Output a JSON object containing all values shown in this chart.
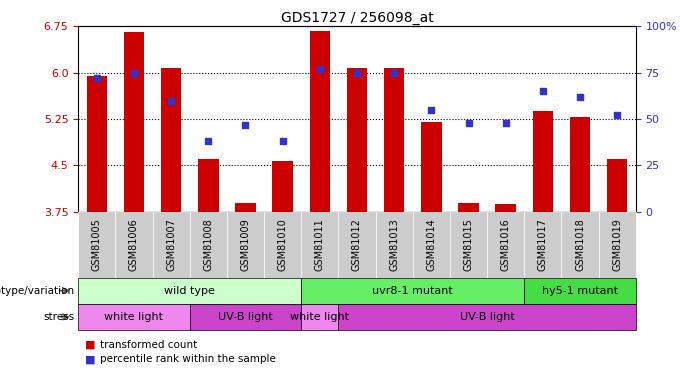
{
  "title": "GDS1727 / 256098_at",
  "samples": [
    "GSM81005",
    "GSM81006",
    "GSM81007",
    "GSM81008",
    "GSM81009",
    "GSM81010",
    "GSM81011",
    "GSM81012",
    "GSM81013",
    "GSM81014",
    "GSM81015",
    "GSM81016",
    "GSM81017",
    "GSM81018",
    "GSM81019"
  ],
  "bar_values": [
    5.95,
    6.65,
    6.08,
    4.6,
    3.9,
    4.57,
    6.68,
    6.08,
    6.08,
    5.2,
    3.9,
    3.87,
    5.38,
    5.28,
    4.6
  ],
  "dot_values": [
    72,
    75,
    60,
    38,
    47,
    38,
    77,
    75,
    75,
    55,
    48,
    48,
    65,
    62,
    52
  ],
  "ylim_left": [
    3.75,
    6.75
  ],
  "ylim_right": [
    0,
    100
  ],
  "yticks_left": [
    3.75,
    4.5,
    5.25,
    6.0,
    6.75
  ],
  "yticks_right": [
    0,
    25,
    50,
    75,
    100
  ],
  "bar_color": "#cc0000",
  "dot_color": "#3333cc",
  "bar_bottom": 3.75,
  "genotype_groups": [
    {
      "label": "wild type",
      "start": 0,
      "end": 6,
      "color": "#ccffcc"
    },
    {
      "label": "uvr8-1 mutant",
      "start": 6,
      "end": 12,
      "color": "#66ee66"
    },
    {
      "label": "hy5-1 mutant",
      "start": 12,
      "end": 15,
      "color": "#44dd44"
    }
  ],
  "stress_groups": [
    {
      "label": "white light",
      "start": 0,
      "end": 3,
      "color": "#ee88ee"
    },
    {
      "label": "UV-B light",
      "start": 3,
      "end": 6,
      "color": "#cc44cc"
    },
    {
      "label": "white light",
      "start": 6,
      "end": 7,
      "color": "#ee88ee"
    },
    {
      "label": "UV-B light",
      "start": 7,
      "end": 15,
      "color": "#cc44cc"
    }
  ],
  "legend_items": [
    {
      "label": "transformed count",
      "color": "#cc0000"
    },
    {
      "label": "percentile rank within the sample",
      "color": "#3333cc"
    }
  ],
  "hline_values": [
    6.0,
    5.25,
    4.5
  ],
  "bg_color": "#ffffff",
  "tick_label_bg": "#cccccc",
  "tick_label_fontsize": 7
}
